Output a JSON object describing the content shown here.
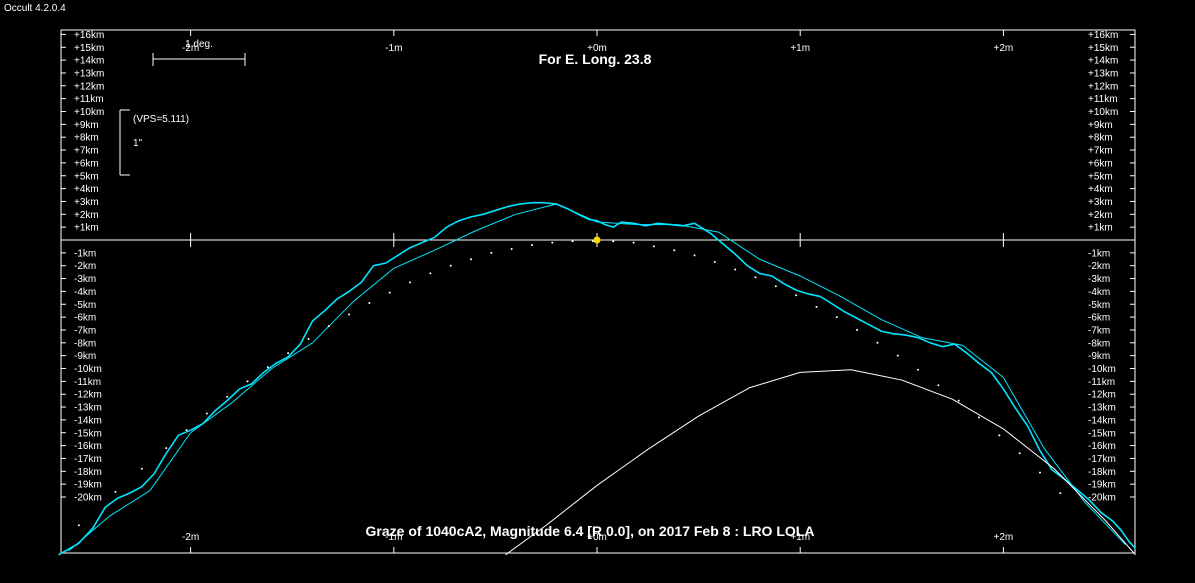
{
  "app": {
    "title": "Occult 4.2.0.4"
  },
  "chart_data": {
    "type": "line",
    "title": "For E. Long. 23.8",
    "subtitle": "Graze of  1040cA2,  Magnitude 6.4 [R 0.0],  on 2017 Feb  8  :  LRO LOLA",
    "scale_bar_label": "1 deg.",
    "vps_label": "(VPS=5.111)",
    "arcsec_label": "1\"",
    "xlim": [
      -2.65,
      2.65
    ],
    "ylim": [
      -24.5,
      16.3
    ],
    "x_ticks": [
      -2,
      -1,
      0,
      1,
      2
    ],
    "x_tick_labels": [
      "-2m",
      "-1m",
      "+0m",
      "+1m",
      "+2m"
    ],
    "y_tick_labels_top": [
      "+16km",
      "+15km",
      "+14km",
      "+13km",
      "+12km",
      "+11km",
      "+10km",
      "+9km",
      "+8km",
      "+7km",
      "+6km",
      "+5km",
      "+4km",
      "+3km",
      "+2km",
      "+1km"
    ],
    "y_tick_labels_bottom": [
      "-1km",
      "-2km",
      "-3km",
      "-4km",
      "-5km",
      "-6km",
      "-7km",
      "-8km",
      "-9km",
      "-10km",
      "-11km",
      "-12km",
      "-13km",
      "-14km",
      "-15km",
      "-16km",
      "-17km",
      "-18km",
      "-19km",
      "-20km"
    ],
    "series": [
      {
        "name": "",
        "color": "#00e5ff",
        "x": [
          -2.65,
          -2.55,
          -2.48,
          -2.42,
          -2.36,
          -2.3,
          -2.24,
          -2.18,
          -2.12,
          -2.06,
          -2.0,
          -1.94,
          -1.88,
          -1.82,
          -1.76,
          -1.7,
          -1.64,
          -1.58,
          -1.52,
          -1.46,
          -1.4,
          -1.34,
          -1.28,
          -1.22,
          -1.16,
          -1.1,
          -1.04,
          -0.98,
          -0.92,
          -0.86,
          -0.8,
          -0.74,
          -0.68,
          -0.62,
          -0.56,
          -0.5,
          -0.44,
          -0.38,
          -0.32,
          -0.26,
          -0.2,
          -0.14,
          -0.08,
          -0.04,
          0.0,
          0.04,
          0.08,
          0.12,
          0.18,
          0.24,
          0.3,
          0.36,
          0.42,
          0.48,
          0.52,
          0.56,
          0.62,
          0.68,
          0.74,
          0.8,
          0.86,
          0.92,
          0.98,
          1.04,
          1.1,
          1.16,
          1.22,
          1.28,
          1.34,
          1.4,
          1.46,
          1.52,
          1.58,
          1.64,
          1.7,
          1.76,
          1.82,
          1.88,
          1.94,
          2.0,
          2.06,
          2.12,
          2.18,
          2.24,
          2.3,
          2.36,
          2.42,
          2.48,
          2.54,
          2.58,
          2.62,
          2.65
        ],
        "values": [
          -24.5,
          -23.6,
          -22.4,
          -20.8,
          -20.1,
          -19.7,
          -19.2,
          -18.2,
          -16.6,
          -15.2,
          -14.8,
          -14.3,
          -13.3,
          -12.5,
          -11.6,
          -11.2,
          -10.3,
          -9.6,
          -9.1,
          -8.1,
          -6.3,
          -5.5,
          -4.6,
          -4.0,
          -3.3,
          -2.0,
          -1.8,
          -1.2,
          -0.6,
          -0.2,
          0.2,
          1.0,
          1.5,
          1.8,
          2.0,
          2.3,
          2.6,
          2.8,
          2.9,
          2.9,
          2.8,
          2.4,
          1.9,
          1.6,
          1.5,
          1.2,
          1.0,
          1.4,
          1.3,
          1.1,
          1.3,
          1.2,
          1.1,
          1.3,
          0.9,
          0.5,
          -0.3,
          -1.1,
          -2.0,
          -2.6,
          -2.8,
          -3.4,
          -3.9,
          -4.2,
          -4.4,
          -5.0,
          -5.6,
          -6.1,
          -6.6,
          -7.1,
          -7.3,
          -7.4,
          -7.6,
          -8.0,
          -8.3,
          -8.1,
          -8.8,
          -9.6,
          -10.3,
          -11.6,
          -13.1,
          -14.5,
          -16.4,
          -17.9,
          -18.6,
          -19.4,
          -20.2,
          -21.2,
          -21.9,
          -22.6,
          -23.5,
          -24.0
        ]
      },
      {
        "name": "",
        "color": "#00e5ff",
        "x": [
          -2.6,
          -2.4,
          -2.2,
          -2.0,
          -1.8,
          -1.6,
          -1.4,
          -1.2,
          -1.0,
          -0.8,
          -0.6,
          -0.4,
          -0.2,
          0.0,
          0.2,
          0.4,
          0.6,
          0.8,
          1.0,
          1.2,
          1.4,
          1.6,
          1.8,
          2.0,
          2.2,
          2.4,
          2.6
        ],
        "values": [
          -24.2,
          -21.5,
          -19.5,
          -15.0,
          -12.7,
          -10.0,
          -8.0,
          -4.8,
          -2.2,
          -0.8,
          0.7,
          2.0,
          2.8,
          1.4,
          1.2,
          1.2,
          0.6,
          -1.5,
          -2.8,
          -4.4,
          -6.2,
          -7.6,
          -8.2,
          -10.7,
          -16.2,
          -20.4,
          -23.7
        ]
      },
      {
        "name": "",
        "color": "#ffffff",
        "style": "dotted",
        "x": [
          -2.55,
          -2.37,
          -2.24,
          -2.12,
          -2.02,
          -1.92,
          -1.82,
          -1.72,
          -1.62,
          -1.52,
          -1.42,
          -1.32,
          -1.22,
          -1.12,
          -1.02,
          -0.92,
          -0.82,
          -0.72,
          -0.62,
          -0.52,
          -0.42,
          -0.32,
          -0.22,
          -0.12,
          -0.02,
          0.08,
          0.18,
          0.28,
          0.38,
          0.48,
          0.58,
          0.68,
          0.78,
          0.88,
          0.98,
          1.08,
          1.18,
          1.28,
          1.38,
          1.48,
          1.58,
          1.68,
          1.78,
          1.88,
          1.98,
          2.08,
          2.18,
          2.28
        ],
        "values": [
          -22.2,
          -19.6,
          -17.8,
          -16.2,
          -14.8,
          -13.5,
          -12.2,
          -11.0,
          -9.9,
          -8.8,
          -7.7,
          -6.7,
          -5.8,
          -4.9,
          -4.1,
          -3.3,
          -2.6,
          -2.0,
          -1.5,
          -1.0,
          -0.7,
          -0.4,
          -0.2,
          -0.1,
          -0.1,
          -0.1,
          -0.2,
          -0.5,
          -0.8,
          -1.2,
          -1.7,
          -2.3,
          -2.9,
          -3.6,
          -4.3,
          -5.2,
          -6.0,
          -7.0,
          -8.0,
          -9.0,
          -10.1,
          -11.3,
          -12.5,
          -13.8,
          -15.2,
          -16.6,
          -18.1,
          -19.7
        ]
      },
      {
        "name": "",
        "color": "#ffffff",
        "x": [
          -0.45,
          -0.25,
          0.0,
          0.25,
          0.5,
          0.75,
          1.0,
          1.25,
          1.5,
          1.75,
          2.0,
          2.25,
          2.5,
          2.65
        ],
        "values": [
          -24.5,
          -22.2,
          -19.1,
          -16.3,
          -13.7,
          -11.5,
          -10.3,
          -10.1,
          -10.9,
          -12.4,
          -14.7,
          -17.8,
          -21.8,
          -24.5
        ]
      }
    ],
    "markers": [
      {
        "x": 0.0,
        "y": 0.0,
        "color": "#ffd700"
      }
    ],
    "grid": false,
    "colors": {
      "background": "#000000",
      "profile": "#00e5ff",
      "limb": "#ffffff",
      "marker": "#ffd700"
    }
  }
}
